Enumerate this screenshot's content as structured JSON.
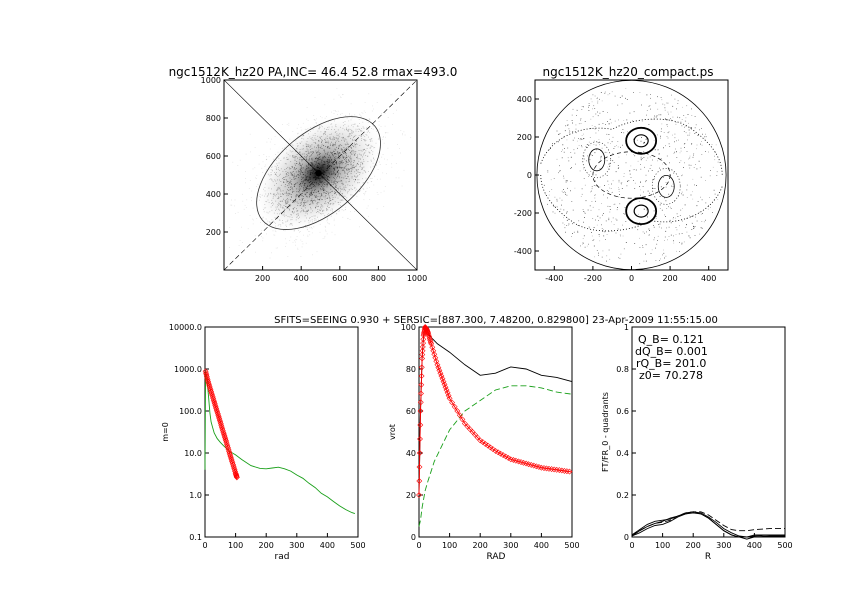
{
  "header_text": "SFITS=SEEING 0.930 + SERSIC=[887.300, 7.48200, 0.829800]  23-Apr-2009 11:55:15.00",
  "chart_data": [
    {
      "type": "scatter",
      "title": "ngc1512K_hz20 PA,INC= 46.4 52.8 rmax=493.0",
      "xlim": [
        0,
        1000
      ],
      "ylim": [
        0,
        1000
      ],
      "xticks": [
        200,
        400,
        600,
        800,
        1000
      ],
      "yticks": [
        200,
        400,
        600,
        800,
        1000
      ],
      "galaxy_center": [
        490,
        510
      ],
      "ellipse": {
        "cx": 490,
        "cy": 510,
        "a_major": 493,
        "b_minor": 300,
        "pa_deg": 46.4
      },
      "major_axis_line": {
        "from": [
          0,
          1000
        ],
        "to": [
          1000,
          0
        ]
      },
      "minor_axis_dashed": {
        "from": [
          0,
          0
        ],
        "to": [
          1000,
          1000
        ]
      }
    },
    {
      "type": "contour",
      "title": "ngc1512K_hz20_compact.ps",
      "xlim": [
        -500,
        500
      ],
      "ylim": [
        -500,
        500
      ],
      "xticks": [
        -400,
        -200,
        0,
        200,
        400
      ],
      "yticks": [
        -400,
        -200,
        0,
        200,
        400
      ],
      "circle_radius": 490,
      "center_ellipse_radii": [
        200,
        120
      ],
      "lobes": [
        {
          "x": 50,
          "y": 180,
          "quadrant": "positive"
        },
        {
          "x": 50,
          "y": -190,
          "quadrant": "positive"
        },
        {
          "x": -180,
          "y": 80,
          "quadrant": "negative"
        },
        {
          "x": 180,
          "y": -60,
          "quadrant": "negative"
        }
      ]
    },
    {
      "type": "line",
      "xlabel": "rad",
      "ylabel": "m=0",
      "scale": "log",
      "xlim": [
        0,
        500
      ],
      "ylim": [
        0.1,
        10000
      ],
      "xticks": [
        0,
        100,
        200,
        300,
        400,
        500
      ],
      "ytick_labels": [
        "0.1",
        "1.0",
        "10.0",
        "100.0",
        "1000.0",
        "10000.0"
      ],
      "series": [
        {
          "color": "#1aa01a",
          "x": [
            0,
            2,
            5,
            8,
            12,
            16,
            20,
            25,
            30,
            40,
            50,
            60,
            80,
            100,
            120,
            150,
            180,
            200,
            220,
            240,
            260,
            280,
            300,
            320,
            340,
            360,
            380,
            400,
            420,
            440,
            460,
            480,
            490
          ],
          "y": [
            4,
            900,
            700,
            450,
            200,
            90,
            55,
            40,
            30,
            22,
            18,
            15,
            11,
            9,
            7,
            5,
            4.3,
            4.2,
            4.4,
            4.6,
            4.2,
            3.7,
            3.0,
            2.5,
            1.9,
            1.5,
            1.1,
            0.9,
            0.7,
            0.55,
            0.45,
            0.38,
            0.36
          ]
        },
        {
          "color": "#ff0000",
          "marker": "diamond",
          "x": [
            2,
            10,
            20,
            30,
            40,
            50,
            60,
            70,
            80,
            90,
            100,
            105
          ],
          "y": [
            880,
            500,
            290,
            165,
            95,
            55,
            31,
            18,
            10,
            5.8,
            3.3,
            2.5
          ]
        }
      ]
    },
    {
      "type": "line",
      "xlabel": "RAD",
      "ylabel": "vrot",
      "xlim": [
        0,
        500
      ],
      "ylim": [
        0,
        100
      ],
      "xticks": [
        0,
        100,
        200,
        300,
        400,
        500
      ],
      "yticks": [
        0,
        20,
        40,
        60,
        80,
        100
      ],
      "series": [
        {
          "color": "#000000",
          "x": [
            0,
            5,
            10,
            15,
            20,
            25,
            30,
            40,
            60,
            80,
            100,
            150,
            200,
            250,
            300,
            350,
            400,
            450,
            500
          ],
          "y": [
            20,
            60,
            85,
            96,
            100,
            99,
            97,
            95,
            92,
            90,
            88,
            82,
            77,
            78,
            81,
            80,
            77,
            76,
            74
          ]
        },
        {
          "color": "#1aa01a",
          "dashed": true,
          "x": [
            0,
            5,
            10,
            20,
            30,
            50,
            70,
            100,
            150,
            200,
            250,
            300,
            350,
            400,
            450,
            500
          ],
          "y": [
            5,
            8,
            14,
            22,
            27,
            36,
            42,
            51,
            60,
            65,
            70,
            72,
            72,
            71,
            69,
            68
          ]
        },
        {
          "color": "#ff0000",
          "marker": "diamond",
          "x": [
            0,
            5,
            10,
            15,
            20,
            25,
            30,
            40,
            60,
            80,
            100,
            150,
            200,
            250,
            300,
            350,
            400,
            450,
            500
          ],
          "y": [
            20,
            60,
            85,
            96,
            100,
            99,
            97,
            92,
            82,
            74,
            66,
            54,
            46,
            41,
            37,
            35,
            33,
            32,
            31
          ]
        }
      ]
    },
    {
      "type": "line",
      "xlabel": "R",
      "ylabel": "FT/FR_0 - quadrants",
      "xlim": [
        0,
        500
      ],
      "ylim": [
        0,
        1.0
      ],
      "xticks": [
        0,
        100,
        200,
        300,
        400,
        500
      ],
      "yticks": [
        0.0,
        0.2,
        0.4,
        0.6,
        0.8,
        1.0
      ],
      "annotations": [
        {
          "text": "Q_B=  0.121"
        },
        {
          "text": "dQ_B=  0.001"
        },
        {
          "text": "rQ_B=  201.0"
        },
        {
          "text": "z0= 70.278"
        }
      ],
      "series": [
        {
          "color": "#000000",
          "x": [
            0,
            25,
            50,
            75,
            100,
            125,
            150,
            175,
            200,
            225,
            250,
            275,
            300,
            325,
            350,
            375,
            400,
            450,
            500
          ],
          "y": [
            0.005,
            0.02,
            0.04,
            0.055,
            0.06,
            0.075,
            0.095,
            0.11,
            0.12,
            0.11,
            0.09,
            0.06,
            0.03,
            0.01,
            0.0,
            0.0,
            0.01,
            0.01,
            0.01
          ]
        },
        {
          "color": "#000000",
          "x": [
            0,
            25,
            50,
            75,
            100,
            125,
            150,
            175,
            200,
            225,
            250,
            275,
            300,
            325,
            350,
            375,
            400,
            450,
            500
          ],
          "y": [
            0.005,
            0.03,
            0.05,
            0.065,
            0.075,
            0.09,
            0.1,
            0.115,
            0.12,
            0.115,
            0.095,
            0.07,
            0.04,
            0.02,
            0.005,
            0.0,
            0.005,
            0.01,
            0.01
          ]
        },
        {
          "color": "#000000",
          "x": [
            0,
            25,
            50,
            75,
            100,
            125,
            150,
            175,
            200,
            225,
            250,
            275,
            300,
            325,
            350,
            375,
            400,
            450,
            500
          ],
          "y": [
            0.01,
            0.035,
            0.06,
            0.075,
            0.08,
            0.085,
            0.1,
            0.11,
            0.115,
            0.11,
            0.09,
            0.06,
            0.03,
            0.01,
            0.0,
            -0.01,
            0.0,
            0.005,
            0.005
          ]
        },
        {
          "color": "#000000",
          "dashed": true,
          "x": [
            0,
            25,
            50,
            75,
            100,
            125,
            150,
            175,
            200,
            225,
            250,
            275,
            300,
            325,
            350,
            375,
            400,
            450,
            500
          ],
          "y": [
            0.01,
            0.03,
            0.05,
            0.065,
            0.07,
            0.08,
            0.1,
            0.115,
            0.12,
            0.12,
            0.105,
            0.08,
            0.055,
            0.035,
            0.03,
            0.03,
            0.035,
            0.04,
            0.04
          ]
        }
      ]
    }
  ]
}
